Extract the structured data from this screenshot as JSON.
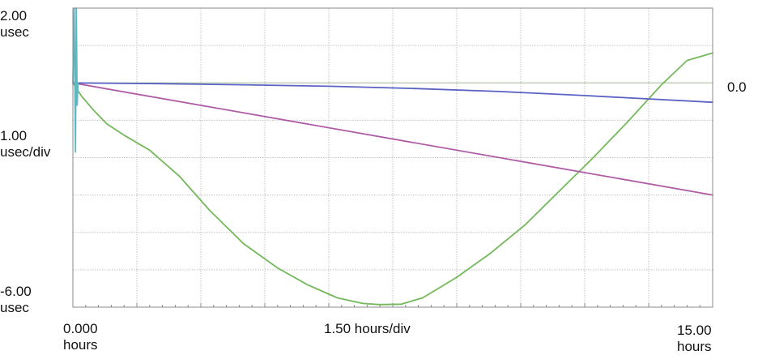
{
  "y_axis": {
    "top_label": [
      "2.00",
      "usec"
    ],
    "scale_label": [
      "1.00",
      "usec/div"
    ],
    "bottom_label": [
      "-6.00",
      "usec"
    ],
    "reference_label": "0.0"
  },
  "x_axis": {
    "start_label": [
      "0.000",
      "hours"
    ],
    "scale_label": "1.50 hours/div",
    "end_label": [
      "15.00",
      "hours"
    ]
  },
  "chart_data": {
    "type": "line",
    "xlabel": "",
    "ylabel": "",
    "xlim": [
      0,
      15
    ],
    "ylim": [
      -6,
      2
    ],
    "x_units": "hours",
    "y_units": "usec",
    "x_div": 1.5,
    "y_div": 1.0,
    "grid": true,
    "reference_line": 0.0,
    "series": [
      {
        "color": "#74b85c",
        "x": [
          0,
          0.2,
          0.5,
          0.8,
          1.2,
          1.8,
          2.5,
          3.2,
          4.0,
          4.8,
          5.5,
          6.2,
          6.8,
          7.2,
          7.7,
          8.2,
          9.0,
          9.8,
          10.6,
          11.4,
          12.2,
          13.0,
          13.8,
          14.4,
          15.0
        ],
        "y": [
          0.0,
          -0.35,
          -0.75,
          -1.1,
          -1.4,
          -1.8,
          -2.5,
          -3.4,
          -4.3,
          -4.95,
          -5.4,
          -5.75,
          -5.9,
          -5.93,
          -5.92,
          -5.75,
          -5.2,
          -4.55,
          -3.8,
          -2.9,
          -2.0,
          -1.05,
          -0.05,
          0.6,
          0.8
        ]
      },
      {
        "color": "#b05ba6",
        "x": [
          0,
          15
        ],
        "y": [
          0.0,
          -3.0
        ]
      },
      {
        "color": "#5b62c4",
        "x": [
          0,
          2,
          4,
          6,
          8,
          10,
          12,
          15
        ],
        "y": [
          0.0,
          -0.02,
          -0.05,
          -0.09,
          -0.15,
          -0.23,
          -0.34,
          -0.52
        ]
      },
      {
        "color": "#5fb7c2",
        "x": [
          0,
          0.03,
          0.06,
          0.08,
          0.1,
          0.12
        ],
        "y": [
          0.0,
          2.0,
          -1.85,
          2.0,
          -0.6,
          0.0
        ]
      }
    ]
  }
}
